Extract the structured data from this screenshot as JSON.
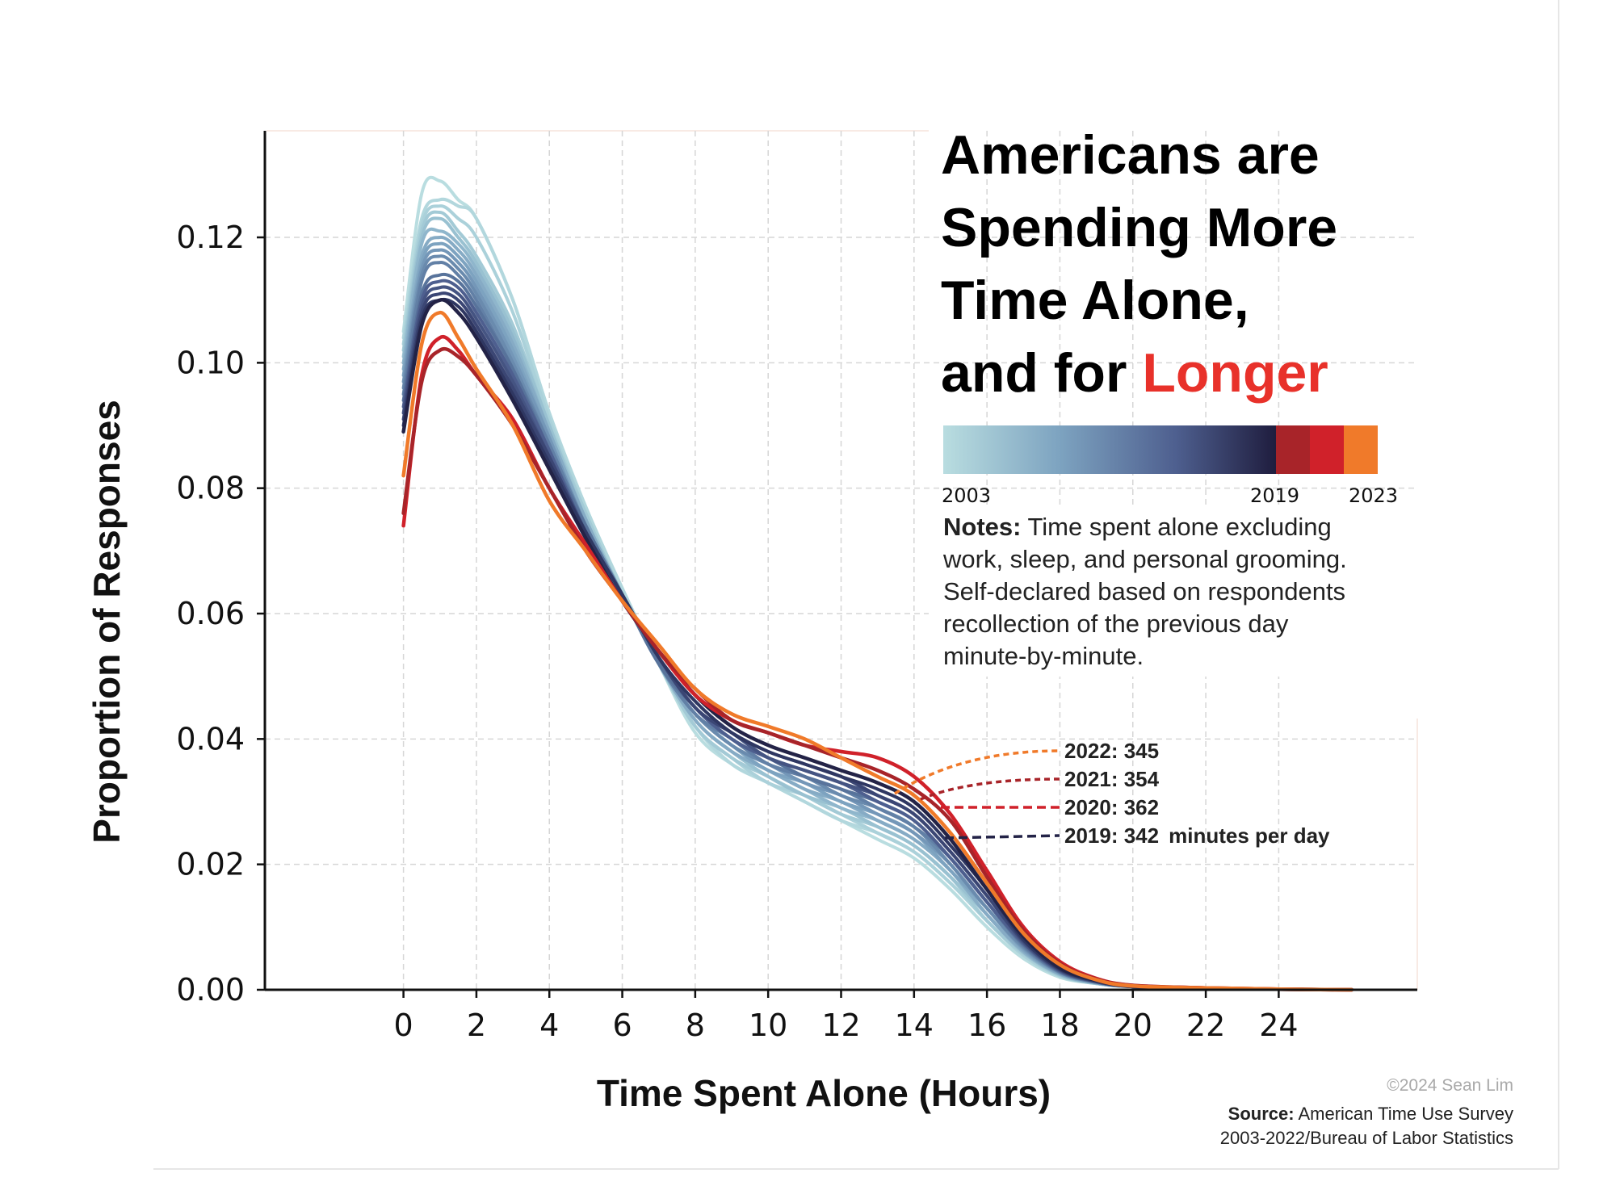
{
  "title": {
    "line1": "Americans are",
    "line2": "Spending More",
    "line3": "Time Alone,",
    "line4_prefix": "and for ",
    "line4_accent": "Longer"
  },
  "colors": {
    "year_2003": "#b9dde0",
    "year_2010": "#7da3c0",
    "year_2015": "#4e5f8f",
    "year_2019": "#232347",
    "year_2020": "#d0212a",
    "year_2021": "#a82429",
    "year_2022": "#f07a2a",
    "accent": "#e8312a"
  },
  "legend": {
    "label_start": "2003",
    "label_mid": "2019",
    "label_end": "2023"
  },
  "notes": {
    "bold": "Notes:",
    "line1": " Time spent alone excluding",
    "line2": "work, sleep, and personal grooming.",
    "line3": "Self-declared based on respondents",
    "line4": "recollection of the previous day",
    "line5": "minute-by-minute."
  },
  "annotations": {
    "a2022": "2022: 345",
    "a2021": "2021: 354",
    "a2020": "2020: 362",
    "a2019": "2019: 342",
    "unit": "minutes per day"
  },
  "footer": {
    "credit": "©2024 Sean Lim",
    "source_bold": "Source:",
    "source_line1": " American Time Use Survey",
    "source_line2": "2003-2022/Bureau of Labor Statistics"
  },
  "chart_data": {
    "type": "line",
    "xlabel": "Time Spent Alone (Hours)",
    "ylabel": "Proportion of Responses",
    "xlim": [
      -3.8,
      27.8
    ],
    "ylim": [
      0,
      0.137
    ],
    "xticks": [
      0,
      2,
      4,
      6,
      8,
      10,
      12,
      14,
      16,
      18,
      20,
      22,
      24
    ],
    "yticks": [
      0.0,
      0.02,
      0.04,
      0.06,
      0.08,
      0.1,
      0.12
    ],
    "ytick_labels": [
      "0.00",
      "0.02",
      "0.04",
      "0.06",
      "0.08",
      "0.10",
      "0.12"
    ],
    "grid": true,
    "x": [
      0,
      0.5,
      1,
      1.5,
      2,
      3,
      4,
      5,
      6,
      7,
      8,
      9,
      10,
      11,
      12,
      13,
      14,
      15,
      16,
      17,
      18,
      19,
      20,
      22,
      24,
      26
    ],
    "series": [
      {
        "name": "2003",
        "color": "#b9dde0",
        "values": [
          0.105,
          0.127,
          0.129,
          0.126,
          0.123,
          0.11,
          0.092,
          0.077,
          0.064,
          0.052,
          0.041,
          0.036,
          0.033,
          0.03,
          0.027,
          0.024,
          0.021,
          0.016,
          0.01,
          0.005,
          0.002,
          0.001,
          0.0005,
          0.0002,
          0.0001,
          0.0
        ]
      },
      {
        "name": "2004",
        "color": "#b2d7dd",
        "values": [
          0.104,
          0.123,
          0.126,
          0.125,
          0.123,
          0.11,
          0.092,
          0.077,
          0.064,
          0.052,
          0.042,
          0.036,
          0.033,
          0.03,
          0.027,
          0.025,
          0.022,
          0.017,
          0.011,
          0.0055,
          0.0022,
          0.001,
          0.0005,
          0.0002,
          0.0001,
          0.0
        ]
      },
      {
        "name": "2005",
        "color": "#abd1da",
        "values": [
          0.103,
          0.122,
          0.125,
          0.123,
          0.12,
          0.108,
          0.091,
          0.076,
          0.063,
          0.052,
          0.042,
          0.037,
          0.033,
          0.031,
          0.028,
          0.025,
          0.022,
          0.017,
          0.011,
          0.0055,
          0.0022,
          0.001,
          0.0005,
          0.0002,
          0.0001,
          0.0
        ]
      },
      {
        "name": "2006",
        "color": "#a3cad6",
        "values": [
          0.102,
          0.121,
          0.124,
          0.121,
          0.117,
          0.106,
          0.09,
          0.076,
          0.063,
          0.052,
          0.042,
          0.037,
          0.034,
          0.031,
          0.028,
          0.026,
          0.023,
          0.018,
          0.011,
          0.0058,
          0.0023,
          0.001,
          0.0005,
          0.0002,
          0.0001,
          0.0
        ]
      },
      {
        "name": "2007",
        "color": "#99c1d1",
        "values": [
          0.101,
          0.12,
          0.123,
          0.12,
          0.116,
          0.105,
          0.09,
          0.075,
          0.063,
          0.052,
          0.043,
          0.038,
          0.034,
          0.031,
          0.029,
          0.026,
          0.023,
          0.018,
          0.012,
          0.006,
          0.0024,
          0.001,
          0.0005,
          0.0002,
          0.0001,
          0.0
        ]
      },
      {
        "name": "2008",
        "color": "#8fb6cc",
        "values": [
          0.1,
          0.119,
          0.121,
          0.119,
          0.115,
          0.104,
          0.089,
          0.075,
          0.063,
          0.052,
          0.043,
          0.038,
          0.035,
          0.032,
          0.029,
          0.027,
          0.024,
          0.019,
          0.012,
          0.006,
          0.0025,
          0.0011,
          0.0005,
          0.0002,
          0.0001,
          0.0
        ]
      },
      {
        "name": "2009",
        "color": "#86abc5",
        "values": [
          0.099,
          0.117,
          0.12,
          0.118,
          0.114,
          0.103,
          0.089,
          0.075,
          0.063,
          0.052,
          0.043,
          0.038,
          0.035,
          0.032,
          0.03,
          0.027,
          0.024,
          0.019,
          0.012,
          0.0062,
          0.0025,
          0.0011,
          0.0005,
          0.0002,
          0.0001,
          0.0
        ]
      },
      {
        "name": "2010",
        "color": "#7da3c0",
        "values": [
          0.098,
          0.116,
          0.119,
          0.117,
          0.113,
          0.102,
          0.088,
          0.074,
          0.063,
          0.052,
          0.044,
          0.039,
          0.035,
          0.033,
          0.03,
          0.028,
          0.025,
          0.019,
          0.013,
          0.0064,
          0.0026,
          0.0011,
          0.0005,
          0.0002,
          0.0001,
          0.0
        ]
      },
      {
        "name": "2011",
        "color": "#7497b8",
        "values": [
          0.097,
          0.115,
          0.118,
          0.116,
          0.112,
          0.101,
          0.088,
          0.074,
          0.063,
          0.052,
          0.044,
          0.039,
          0.036,
          0.033,
          0.031,
          0.028,
          0.025,
          0.02,
          0.013,
          0.0066,
          0.0027,
          0.0012,
          0.0005,
          0.0002,
          0.0001,
          0.0
        ]
      },
      {
        "name": "2012",
        "color": "#6a8bae",
        "values": [
          0.096,
          0.114,
          0.117,
          0.115,
          0.111,
          0.1,
          0.087,
          0.074,
          0.063,
          0.052,
          0.044,
          0.039,
          0.036,
          0.034,
          0.031,
          0.029,
          0.026,
          0.02,
          0.013,
          0.0068,
          0.0028,
          0.0012,
          0.0005,
          0.0002,
          0.0001,
          0.0
        ]
      },
      {
        "name": "2013",
        "color": "#6280a6",
        "values": [
          0.095,
          0.113,
          0.116,
          0.114,
          0.11,
          0.099,
          0.087,
          0.074,
          0.063,
          0.052,
          0.044,
          0.04,
          0.036,
          0.034,
          0.032,
          0.029,
          0.026,
          0.021,
          0.014,
          0.007,
          0.0028,
          0.0012,
          0.0005,
          0.0002,
          0.0001,
          0.0
        ]
      },
      {
        "name": "2014",
        "color": "#58739b",
        "values": [
          0.094,
          0.111,
          0.114,
          0.113,
          0.109,
          0.099,
          0.086,
          0.074,
          0.063,
          0.052,
          0.045,
          0.04,
          0.037,
          0.034,
          0.032,
          0.03,
          0.027,
          0.021,
          0.014,
          0.0072,
          0.0029,
          0.0012,
          0.0005,
          0.0002,
          0.0001,
          0.0
        ]
      },
      {
        "name": "2015",
        "color": "#4e5f8f",
        "values": [
          0.093,
          0.11,
          0.113,
          0.112,
          0.108,
          0.098,
          0.086,
          0.073,
          0.063,
          0.053,
          0.045,
          0.04,
          0.037,
          0.035,
          0.033,
          0.03,
          0.027,
          0.021,
          0.014,
          0.0074,
          0.003,
          0.0013,
          0.0005,
          0.0002,
          0.0001,
          0.0
        ]
      },
      {
        "name": "2016",
        "color": "#455482",
        "values": [
          0.092,
          0.109,
          0.112,
          0.111,
          0.107,
          0.097,
          0.085,
          0.073,
          0.063,
          0.053,
          0.045,
          0.041,
          0.037,
          0.035,
          0.033,
          0.031,
          0.028,
          0.022,
          0.015,
          0.0076,
          0.0031,
          0.0013,
          0.0005,
          0.0002,
          0.0001,
          0.0
        ]
      },
      {
        "name": "2017",
        "color": "#3b4674",
        "values": [
          0.091,
          0.108,
          0.111,
          0.11,
          0.106,
          0.096,
          0.085,
          0.073,
          0.063,
          0.053,
          0.045,
          0.041,
          0.038,
          0.036,
          0.034,
          0.031,
          0.028,
          0.022,
          0.015,
          0.0078,
          0.0032,
          0.0013,
          0.0005,
          0.0002,
          0.0001,
          0.0
        ]
      },
      {
        "name": "2018",
        "color": "#2f3762",
        "values": [
          0.09,
          0.107,
          0.11,
          0.109,
          0.105,
          0.095,
          0.084,
          0.073,
          0.063,
          0.053,
          0.046,
          0.041,
          0.038,
          0.036,
          0.034,
          0.032,
          0.029,
          0.023,
          0.016,
          0.008,
          0.0033,
          0.0014,
          0.0005,
          0.0002,
          0.0001,
          0.0
        ]
      },
      {
        "name": "2019",
        "color": "#232347",
        "values": [
          0.089,
          0.106,
          0.11,
          0.108,
          0.104,
          0.094,
          0.083,
          0.072,
          0.062,
          0.054,
          0.047,
          0.042,
          0.039,
          0.037,
          0.035,
          0.033,
          0.03,
          0.024,
          0.016,
          0.0085,
          0.0035,
          0.0015,
          0.0006,
          0.0002,
          0.0001,
          0.0
        ]
      },
      {
        "name": "2020",
        "color": "#d0212a",
        "values": [
          0.074,
          0.098,
          0.104,
          0.102,
          0.098,
          0.091,
          0.08,
          0.071,
          0.062,
          0.054,
          0.047,
          0.043,
          0.041,
          0.039,
          0.038,
          0.037,
          0.034,
          0.028,
          0.019,
          0.01,
          0.0045,
          0.0018,
          0.0007,
          0.0003,
          0.0001,
          0.0
        ]
      },
      {
        "name": "2021",
        "color": "#a82429",
        "values": [
          0.076,
          0.097,
          0.102,
          0.101,
          0.098,
          0.09,
          0.08,
          0.07,
          0.062,
          0.054,
          0.048,
          0.043,
          0.041,
          0.039,
          0.037,
          0.035,
          0.032,
          0.027,
          0.018,
          0.0095,
          0.0042,
          0.0017,
          0.0007,
          0.0003,
          0.0001,
          0.0
        ]
      },
      {
        "name": "2022",
        "color": "#f07a2a",
        "values": [
          0.082,
          0.103,
          0.108,
          0.104,
          0.099,
          0.09,
          0.078,
          0.07,
          0.062,
          0.055,
          0.048,
          0.044,
          0.042,
          0.04,
          0.037,
          0.034,
          0.031,
          0.025,
          0.017,
          0.009,
          0.004,
          0.0016,
          0.0006,
          0.0003,
          0.0001,
          0.0
        ]
      }
    ]
  }
}
